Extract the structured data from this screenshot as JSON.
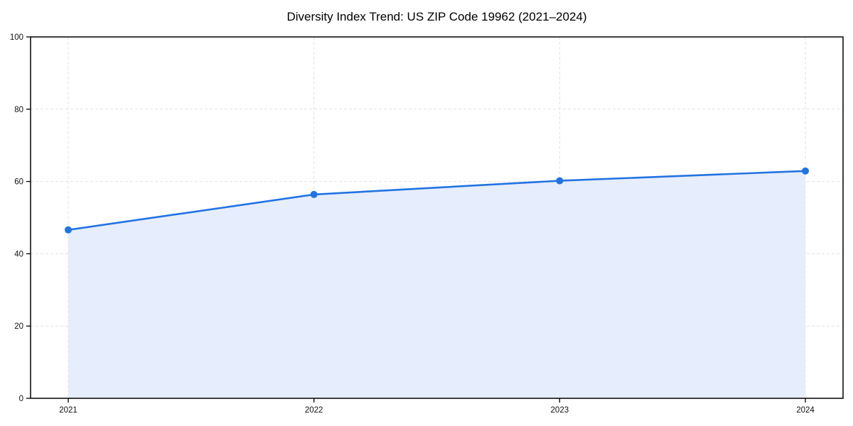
{
  "title": "Diversity Index Trend: US ZIP Code 19962 (2021–2024)",
  "chart_data": {
    "type": "area",
    "title": "Diversity Index Trend: US ZIP Code 19962 (2021–2024)",
    "categories": [
      "2021",
      "2022",
      "2023",
      "2024"
    ],
    "values": [
      46.6,
      56.4,
      60.2,
      62.9
    ],
    "series_description": "Diversity Index by year, line with circular markers and shaded area beneath",
    "xlabel": "",
    "ylabel": "",
    "ylim": [
      0,
      100
    ],
    "yticks": [
      0,
      20,
      40,
      60,
      80,
      100
    ],
    "grid": true,
    "legend": false,
    "colors": {
      "line": "#2273e2",
      "marker": "#2273e2",
      "fill": "#e6edfc",
      "grid": "#e2e2e2",
      "spine": "#000000",
      "tick_label": "#111111",
      "title": "#000000",
      "background": "#ffffff"
    }
  }
}
